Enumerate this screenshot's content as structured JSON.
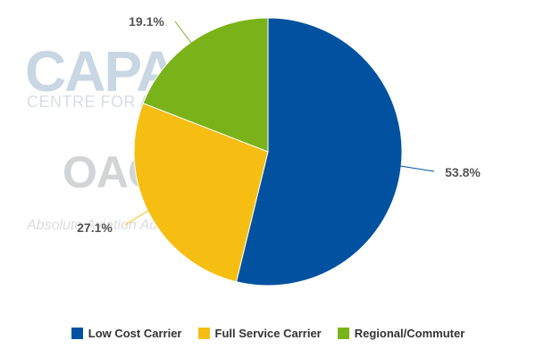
{
  "watermark": {
    "capa": "CAPA",
    "capa_sub": "CENTRE FOR AVIATION",
    "oag": "OAG",
    "oag_sub": "Absolute Aviation Advantage"
  },
  "chart_data": {
    "type": "pie",
    "title": "",
    "slices": [
      {
        "name": "Low Cost Carrier",
        "value": 53.8,
        "label": "53.8%",
        "color": "#0052a0"
      },
      {
        "name": "Full Service Carrier",
        "value": 27.1,
        "label": "27.1%",
        "color": "#f6be13"
      },
      {
        "name": "Regional/Commuter",
        "value": 19.1,
        "label": "19.1%",
        "color": "#7ab319"
      }
    ],
    "legend_position": "bottom"
  }
}
